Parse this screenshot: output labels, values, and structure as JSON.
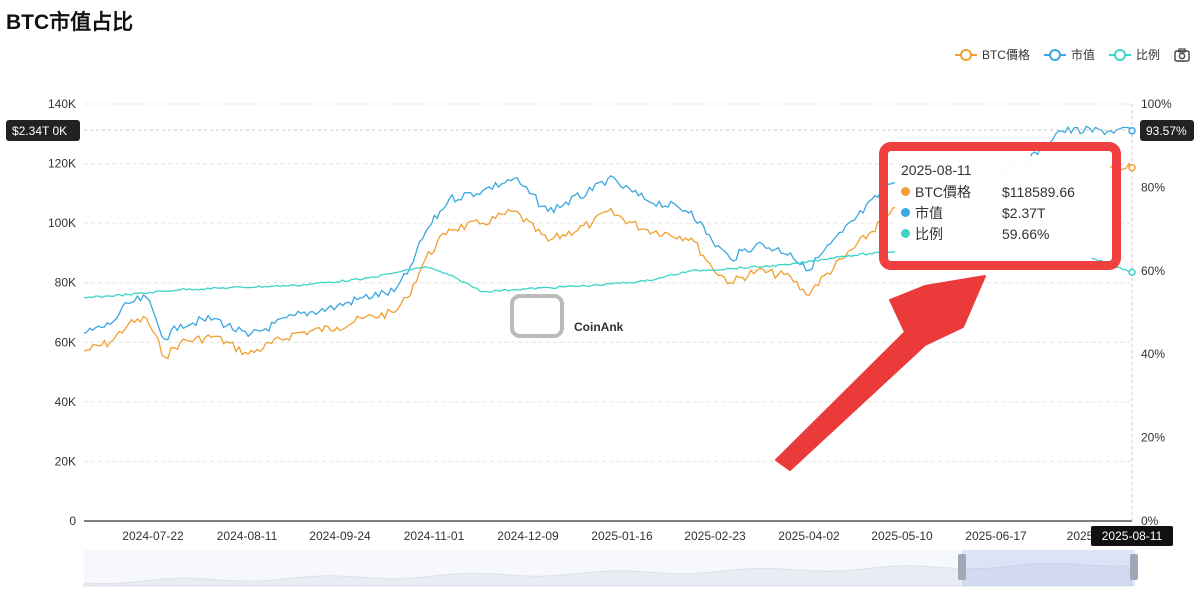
{
  "title": "BTC市值占比",
  "legend": [
    {
      "label": "BTC價格",
      "color": "#f0a030"
    },
    {
      "label": "市值",
      "color": "#3aa8e0"
    },
    {
      "label": "比例",
      "color": "#3dd4c8"
    }
  ],
  "camera_icon": "camera-icon",
  "watermark": "CoinAnk",
  "pointer": {
    "left": "$2.34T",
    "left_suffix": "0K",
    "right": "93.57%",
    "x_date": "2025-08-11"
  },
  "tooltip": {
    "date": "2025-08-11",
    "rows": [
      {
        "label": "BTC價格",
        "value": "$118589.66",
        "color": "#f0a030"
      },
      {
        "label": "市值",
        "value": "$2.37T",
        "color": "#3aa8e0"
      },
      {
        "label": "比例",
        "value": "59.66%",
        "color": "#3dd4c8"
      }
    ]
  },
  "chart_data": {
    "type": "line",
    "title": "BTC市值占比",
    "y_left": {
      "ticks": [
        "0",
        "20K",
        "40K",
        "60K",
        "80K",
        "100K",
        "120K",
        "140K"
      ],
      "range": [
        0,
        140000
      ]
    },
    "y_right": {
      "ticks": [
        "0%",
        "20%",
        "40%",
        "60%",
        "80%",
        "100%"
      ],
      "range": [
        0,
        100
      ]
    },
    "x_ticks": [
      "2024-07-22",
      "2024-08-11",
      "2024-09-24",
      "2024-11-01",
      "2024-12-09",
      "2025-01-16",
      "2025-02-23",
      "2025-04-02",
      "2025-05-10",
      "2025-06-17",
      "2025-"
    ],
    "grid": true,
    "legend_position": "top-right",
    "series": [
      {
        "name": "BTC價格",
        "axis": "left",
        "color": "#f0a030",
        "x": [
          "2024-07-05",
          "2024-07-15",
          "2024-07-22",
          "2024-07-29",
          "2024-08-05",
          "2024-08-11",
          "2024-08-24",
          "2024-09-06",
          "2024-09-24",
          "2024-10-10",
          "2024-10-20",
          "2024-11-01",
          "2024-11-06",
          "2024-11-13",
          "2024-11-22",
          "2024-12-05",
          "2024-12-17",
          "2024-12-30",
          "2025-01-16",
          "2025-01-22",
          "2025-02-05",
          "2025-02-23",
          "2025-03-03",
          "2025-03-10",
          "2025-03-20",
          "2025-04-02",
          "2025-04-08",
          "2025-04-22",
          "2025-05-10",
          "2025-05-22",
          "2025-06-05",
          "2025-06-17",
          "2025-06-30",
          "2025-07-14",
          "2025-08-11"
        ],
        "y": [
          57000,
          60000,
          66000,
          68000,
          55000,
          60000,
          62000,
          56000,
          63000,
          65000,
          68000,
          70000,
          75000,
          88000,
          98000,
          100000,
          104000,
          94000,
          100000,
          104000,
          98000,
          95000,
          85000,
          80000,
          84000,
          82000,
          76000,
          88000,
          103000,
          109000,
          104000,
          106000,
          108000,
          118000,
          118589.66
        ]
      },
      {
        "name": "市值",
        "axis": "left",
        "color": "#3aa8e0",
        "x": [
          "2024-07-05",
          "2024-07-15",
          "2024-07-22",
          "2024-07-29",
          "2024-08-05",
          "2024-08-11",
          "2024-08-24",
          "2024-09-06",
          "2024-09-24",
          "2024-10-10",
          "2024-10-20",
          "2024-11-01",
          "2024-11-06",
          "2024-11-13",
          "2024-11-22",
          "2024-12-05",
          "2024-12-17",
          "2024-12-30",
          "2025-01-16",
          "2025-01-22",
          "2025-02-05",
          "2025-02-23",
          "2025-03-03",
          "2025-03-10",
          "2025-03-20",
          "2025-04-02",
          "2025-04-08",
          "2025-04-22",
          "2025-05-10",
          "2025-05-22",
          "2025-06-05",
          "2025-06-17",
          "2025-06-30",
          "2025-07-14",
          "2025-08-11"
        ],
        "y": [
          63000,
          66000,
          73000,
          75000,
          61000,
          66000,
          68000,
          62000,
          69000,
          72000,
          75000,
          77000,
          83000,
          97000,
          108000,
          111000,
          115000,
          104000,
          111000,
          115000,
          108000,
          104000,
          94000,
          88000,
          93000,
          90000,
          84000,
          97000,
          113000,
          121000,
          115000,
          117000,
          119000,
          131000,
          131000
        ]
      },
      {
        "name": "比例",
        "axis": "right",
        "color": "#3dd4c8",
        "x": [
          "2024-07-05",
          "2024-07-22",
          "2024-08-11",
          "2024-09-24",
          "2024-10-20",
          "2024-11-01",
          "2024-11-13",
          "2024-11-22",
          "2024-12-05",
          "2024-12-17",
          "2025-01-16",
          "2025-02-05",
          "2025-02-23",
          "2025-03-10",
          "2025-04-02",
          "2025-04-22",
          "2025-05-10",
          "2025-06-05",
          "2025-06-17",
          "2025-07-14",
          "2025-08-11"
        ],
        "y": [
          53.5,
          54.3,
          55.5,
          56.5,
          58,
          59.5,
          61,
          59,
          55,
          55.5,
          56.5,
          57.5,
          60,
          60.5,
          61.5,
          63.5,
          64.5,
          65.2,
          65.8,
          66,
          59.66
        ]
      }
    ]
  }
}
